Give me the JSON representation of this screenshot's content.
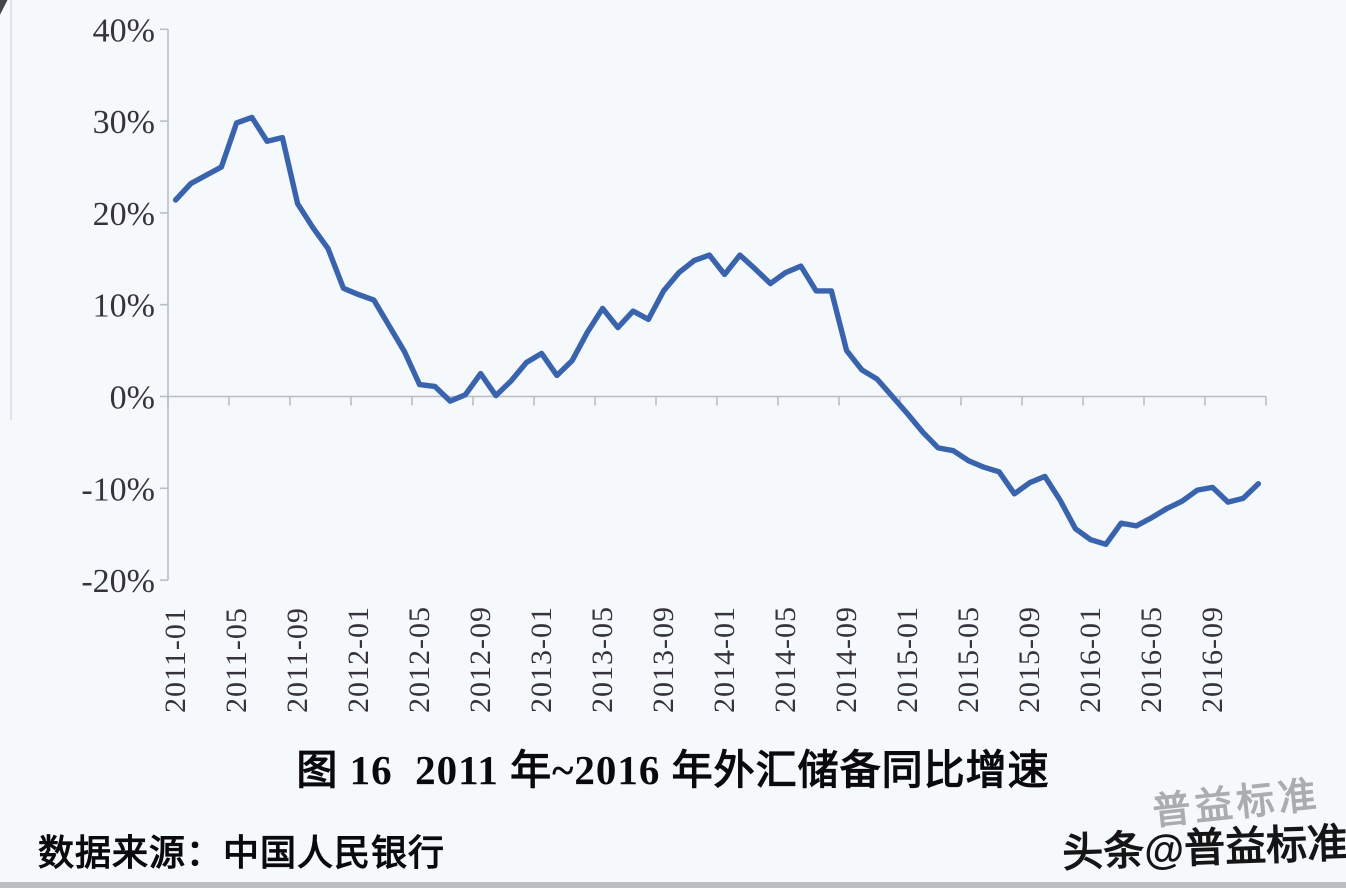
{
  "page": {
    "background": "#f5f9fc"
  },
  "chart_data": {
    "type": "line",
    "title": "图 16  2011 年~2016 年外汇储备同比增速",
    "xlabel": "",
    "ylabel": "",
    "ylim": [
      -20,
      40
    ],
    "grid": false,
    "legend_position": "none",
    "line_color": "#3a63ae",
    "axis_color": "#b9bec5",
    "label_color": "#37323d",
    "y_ticks": [
      {
        "value": 40,
        "label": "40%"
      },
      {
        "value": 30,
        "label": "30%"
      },
      {
        "value": 20,
        "label": "20%"
      },
      {
        "value": 10,
        "label": "10%"
      },
      {
        "value": 0,
        "label": "0%"
      },
      {
        "value": -10,
        "label": "-10%"
      },
      {
        "value": -20,
        "label": "-20%"
      }
    ],
    "x_tick_labels": [
      "2011-01",
      "2011-05",
      "2011-09",
      "2012-01",
      "2012-05",
      "2012-09",
      "2013-01",
      "2013-05",
      "2013-09",
      "2014-01",
      "2014-05",
      "2014-09",
      "2015-01",
      "2015-05",
      "2015-09",
      "2016-01",
      "2016-05",
      "2016-09"
    ],
    "series": [
      {
        "name": "外汇储备同比增速",
        "x": [
          "2011-01",
          "2011-02",
          "2011-03",
          "2011-04",
          "2011-05",
          "2011-06",
          "2011-07",
          "2011-08",
          "2011-09",
          "2011-10",
          "2011-11",
          "2011-12",
          "2012-01",
          "2012-02",
          "2012-03",
          "2012-04",
          "2012-05",
          "2012-06",
          "2012-07",
          "2012-08",
          "2012-09",
          "2012-10",
          "2012-11",
          "2012-12",
          "2013-01",
          "2013-02",
          "2013-03",
          "2013-04",
          "2013-05",
          "2013-06",
          "2013-07",
          "2013-08",
          "2013-09",
          "2013-10",
          "2013-11",
          "2013-12",
          "2014-01",
          "2014-02",
          "2014-03",
          "2014-04",
          "2014-05",
          "2014-06",
          "2014-07",
          "2014-08",
          "2014-09",
          "2014-10",
          "2014-11",
          "2014-12",
          "2015-01",
          "2015-02",
          "2015-03",
          "2015-04",
          "2015-05",
          "2015-06",
          "2015-07",
          "2015-08",
          "2015-09",
          "2015-10",
          "2015-11",
          "2015-12",
          "2016-01",
          "2016-02",
          "2016-03",
          "2016-04",
          "2016-05",
          "2016-06",
          "2016-07",
          "2016-08",
          "2016-09",
          "2016-10",
          "2016-11",
          "2016-12"
        ],
        "values": [
          21.4,
          23.2,
          24.1,
          25.0,
          29.8,
          30.4,
          27.8,
          28.2,
          21.0,
          18.4,
          16.1,
          11.8,
          11.1,
          10.5,
          7.7,
          4.9,
          1.3,
          1.1,
          -0.5,
          0.2,
          2.5,
          0.1,
          1.7,
          3.7,
          4.7,
          2.3,
          3.9,
          7.0,
          9.6,
          7.5,
          9.3,
          8.4,
          11.5,
          13.5,
          14.8,
          15.4,
          13.3,
          15.4,
          13.9,
          12.3,
          13.5,
          14.2,
          11.5,
          11.5,
          5.0,
          2.9,
          1.9,
          0.0,
          -1.9,
          -3.9,
          -5.6,
          -5.9,
          -7.0,
          -7.7,
          -8.2,
          -10.6,
          -9.4,
          -8.7,
          -11.3,
          -14.4,
          -15.6,
          -16.1,
          -13.8,
          -14.1,
          -13.2,
          -12.2,
          -11.4,
          -10.2,
          -9.9,
          -11.5,
          -11.1,
          -9.5
        ]
      }
    ]
  },
  "source": {
    "text": "数据来源：中国人民银行"
  },
  "watermark": {
    "main": "头条@普益标准",
    "ghost": "普益标准"
  }
}
